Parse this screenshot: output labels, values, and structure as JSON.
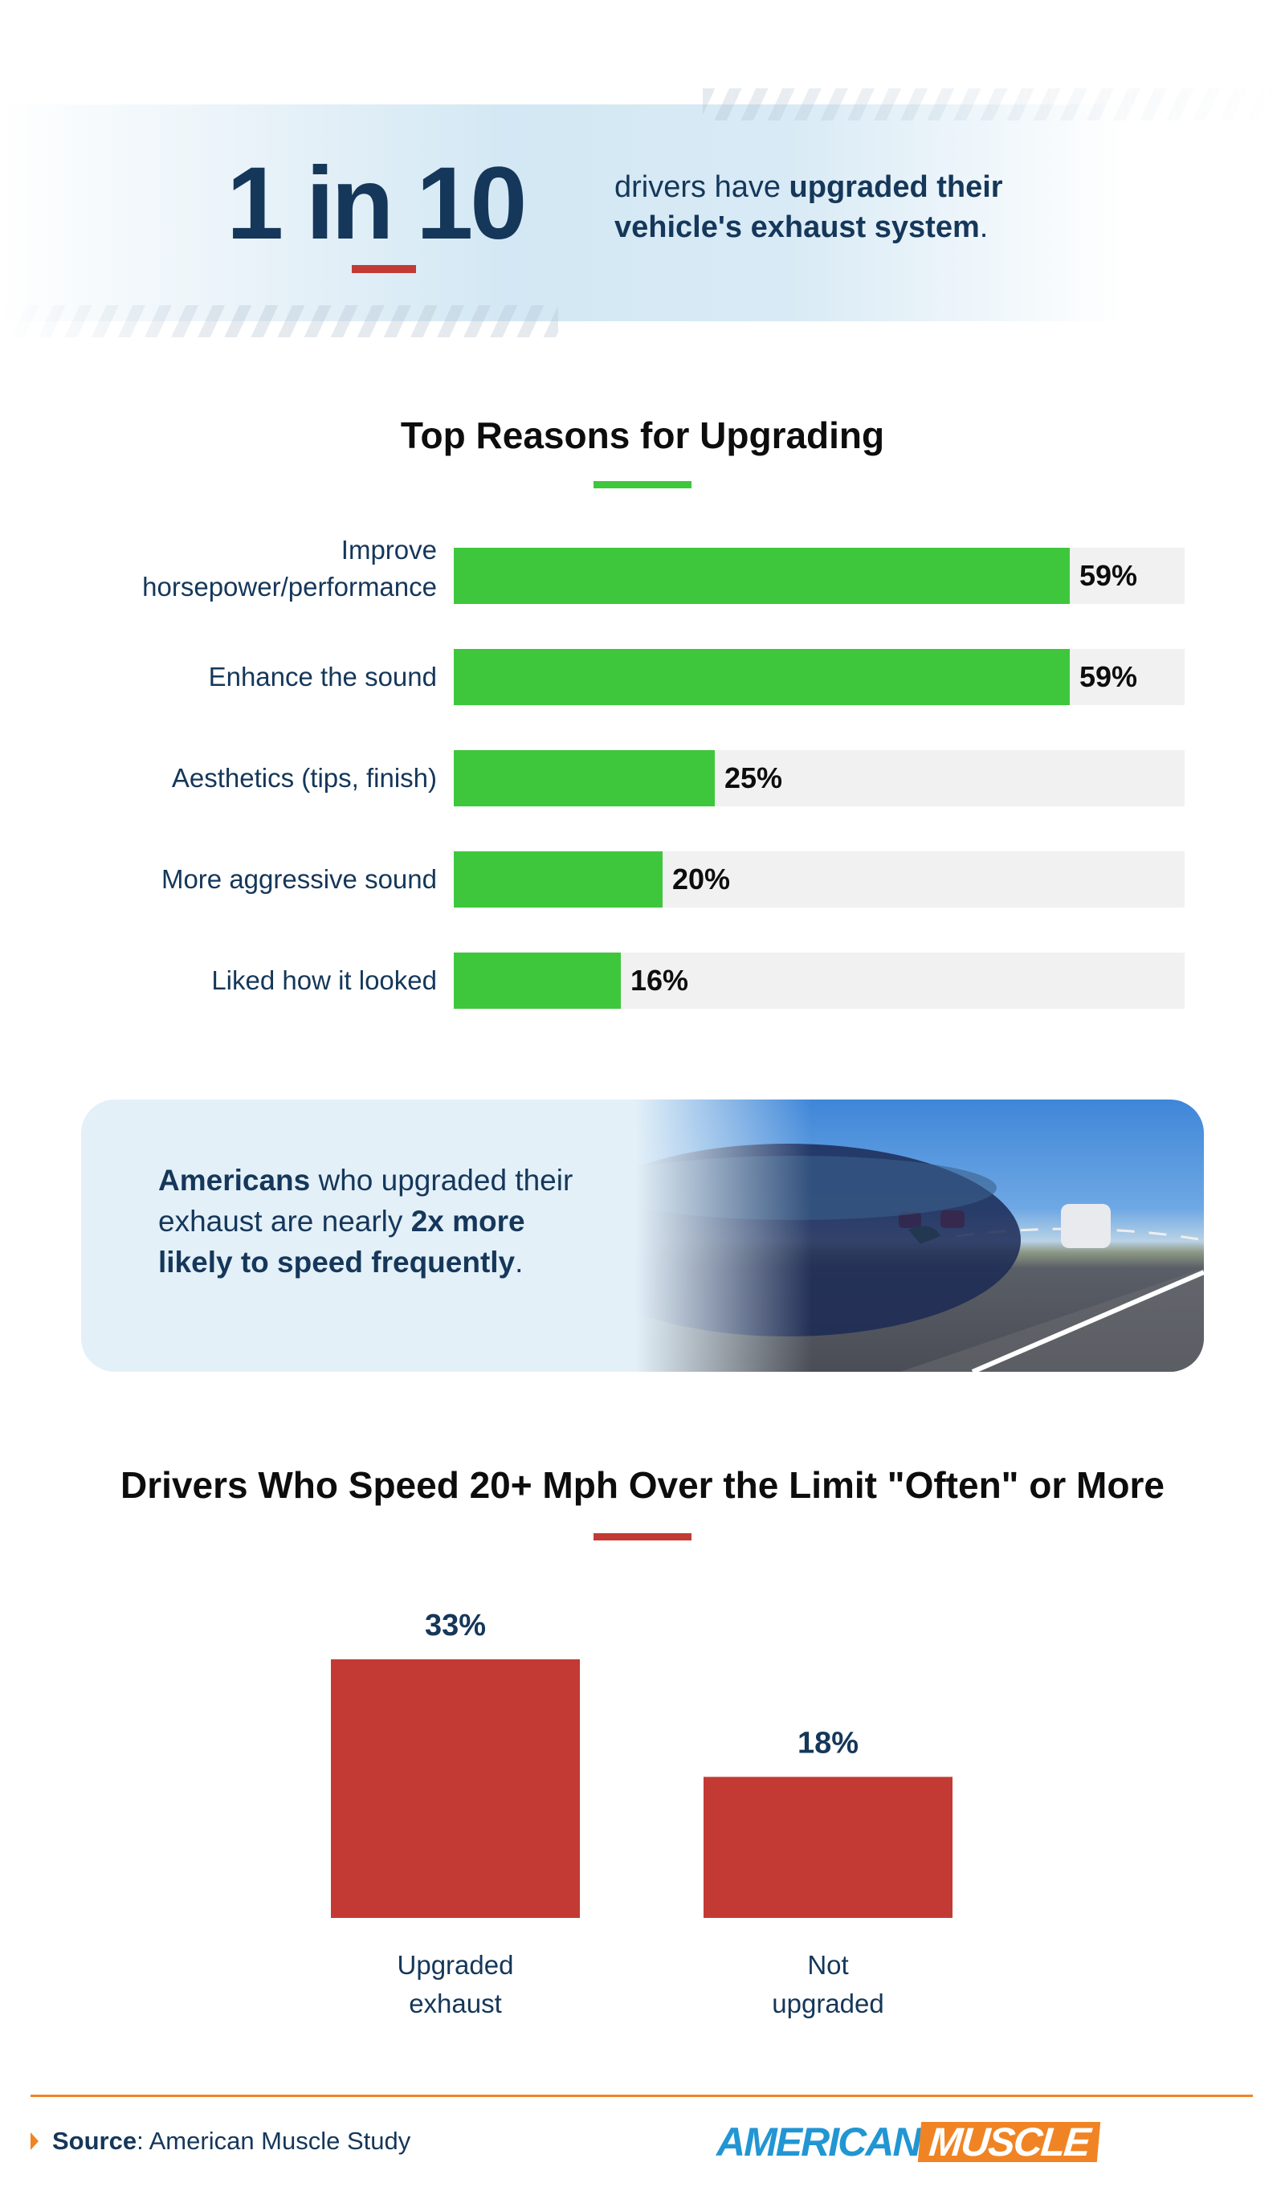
{
  "banner": {
    "stat": "1 in 10",
    "text_segments": [
      {
        "text": "drivers have ",
        "bold": false
      },
      {
        "text": "upgraded their vehicle's exhaust system",
        "bold": true
      },
      {
        "text": ".",
        "bold": false
      }
    ]
  },
  "callout": {
    "text_segments": [
      {
        "text": "Americans",
        "bold": true
      },
      {
        "text": " who upgraded their exhaust are nearly ",
        "bold": false
      },
      {
        "text": "2x more likely to speed frequently",
        "bold": true
      },
      {
        "text": ".",
        "bold": false
      }
    ]
  },
  "footer": {
    "source_label": "Source",
    "source_text": ": American Muscle Study",
    "logo_part1": "AMERICAN",
    "logo_part2": "MUSCLE"
  },
  "colors": {
    "navy": "#15375a",
    "green": "#3ec73c",
    "red": "#c33a34",
    "orange": "#f08424",
    "track": "#f1f1f1",
    "logo_blue": "#2196d3"
  },
  "chart_data": [
    {
      "type": "bar",
      "orientation": "horizontal",
      "title": "Top Reasons for Upgrading",
      "categories": [
        "Improve horsepower/performance",
        "Enhance the sound",
        "Aesthetics (tips, finish)",
        "More aggressive sound",
        "Liked how it looked"
      ],
      "values": [
        59,
        59,
        25,
        20,
        16
      ],
      "value_labels": [
        "59%",
        "59%",
        "25%",
        "20%",
        "16%"
      ],
      "xlim": [
        0,
        70
      ],
      "grid": false,
      "color": "#3ec73c"
    },
    {
      "type": "bar",
      "orientation": "vertical",
      "title": "Drivers Who Speed 20+ Mph Over the Limit \"Often\" or More",
      "categories": [
        "Upgraded exhaust",
        "Not upgraded"
      ],
      "values": [
        33,
        18
      ],
      "value_labels": [
        "33%",
        "18%"
      ],
      "ylim": [
        0,
        33
      ],
      "grid": false,
      "color": "#c33a34"
    }
  ]
}
